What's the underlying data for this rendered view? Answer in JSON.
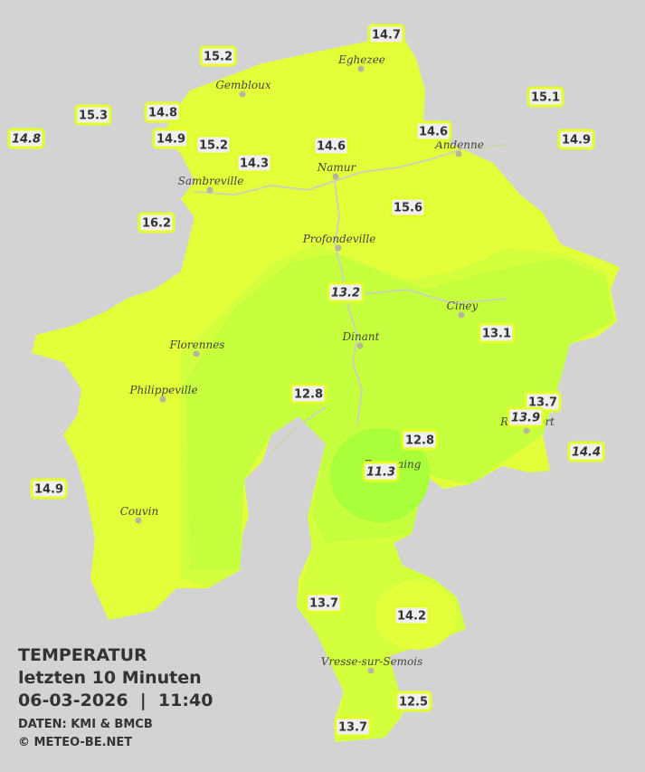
{
  "legend": {
    "title": "TEMPERATUR",
    "period": "letzten 10 Minuten",
    "datetime": "06-03-2026  |  11:40",
    "source": "DATEN: KMI & BMCB",
    "copyright": "© METEO-BE.NET"
  },
  "cities": [
    "Eghezee",
    "Gembloux",
    "Andenne",
    "Namur",
    "Sambreville",
    "Profondeville",
    "Ciney",
    "Dinant",
    "Florennes",
    "Philippeville",
    "Rochefort",
    "Beauraing",
    "Couvin",
    "Vresse-sur-Semois"
  ],
  "stations": [
    {
      "value": 14.7,
      "italic": false
    },
    {
      "value": 15.2,
      "italic": false
    },
    {
      "value": 15.1,
      "italic": false
    },
    {
      "value": 15.3,
      "italic": false
    },
    {
      "value": 14.8,
      "italic": false
    },
    {
      "value": 14.8,
      "italic": true
    },
    {
      "value": 14.9,
      "italic": false
    },
    {
      "value": 15.2,
      "italic": false
    },
    {
      "value": 14.6,
      "italic": false
    },
    {
      "value": 14.9,
      "italic": false
    },
    {
      "value": 14.6,
      "italic": false
    },
    {
      "value": 14.3,
      "italic": false
    },
    {
      "value": 15.6,
      "italic": false
    },
    {
      "value": 16.2,
      "italic": false
    },
    {
      "value": 13.2,
      "italic": true
    },
    {
      "value": 13.1,
      "italic": false
    },
    {
      "value": 12.8,
      "italic": false
    },
    {
      "value": 13.7,
      "italic": false
    },
    {
      "value": 13.9,
      "italic": true
    },
    {
      "value": 14.4,
      "italic": true
    },
    {
      "value": 12.8,
      "italic": false
    },
    {
      "value": 11.3,
      "italic": true
    },
    {
      "value": 14.9,
      "italic": false
    },
    {
      "value": 13.7,
      "italic": false
    },
    {
      "value": 14.2,
      "italic": false
    },
    {
      "value": 12.5,
      "italic": false
    },
    {
      "value": 13.7,
      "italic": false
    }
  ]
}
